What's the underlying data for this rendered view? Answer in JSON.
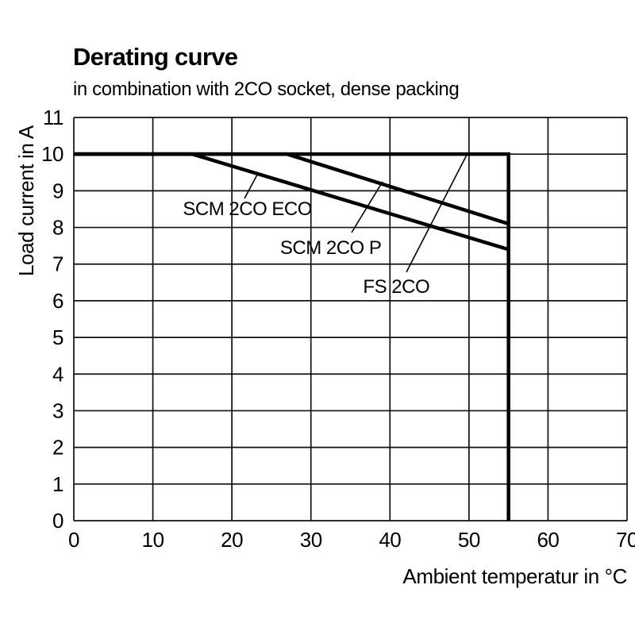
{
  "chart_data": {
    "type": "line",
    "title": "Derating curve",
    "subtitle": "in combination with 2CO socket, dense packing",
    "xlabel": "Ambient temperatur in °C",
    "ylabel": "Load current in A",
    "xlim": [
      0,
      70
    ],
    "ylim": [
      0,
      11
    ],
    "x_ticks": [
      0,
      10,
      20,
      30,
      40,
      50,
      60,
      70
    ],
    "y_ticks": [
      0,
      1,
      2,
      3,
      4,
      5,
      6,
      7,
      8,
      9,
      10,
      11
    ],
    "grid": true,
    "legend_position": "inline-annotations",
    "series": [
      {
        "name": "FS 2CO",
        "points": [
          [
            0,
            10
          ],
          [
            55,
            10
          ],
          [
            55,
            0
          ]
        ]
      },
      {
        "name": "SCM 2CO P",
        "points": [
          [
            0,
            10
          ],
          [
            27,
            10
          ],
          [
            55,
            8.1
          ]
        ]
      },
      {
        "name": "SCM 2CO ECO",
        "points": [
          [
            0,
            10
          ],
          [
            15,
            10
          ],
          [
            55,
            7.4
          ]
        ]
      }
    ],
    "annotations": [
      {
        "label": "SCM 2CO ECO",
        "label_pos": [
          13.8,
          8.51
        ],
        "leader_from": [
          21.6,
          8.79
        ],
        "leader_to": [
          23.3,
          9.48
        ]
      },
      {
        "label": "SCM 2CO P",
        "label_pos": [
          26.1,
          7.45
        ],
        "leader_from": [
          35.15,
          7.86
        ],
        "leader_to": [
          39.07,
          9.25
        ]
      },
      {
        "label": "FS 2CO",
        "label_pos": [
          36.6,
          6.39
        ],
        "leader_from": [
          42.08,
          6.78
        ],
        "leader_to": [
          49.81,
          10.02
        ]
      }
    ]
  },
  "colors": {
    "curve": "#000000",
    "grid": "#111111",
    "text": "#000000",
    "background": "#ffffff"
  }
}
